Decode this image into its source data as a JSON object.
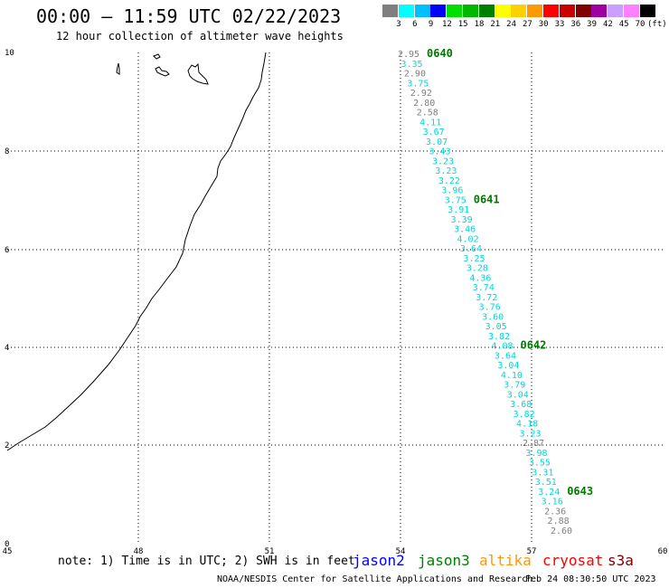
{
  "header": {
    "title": "00:00 – 11:59 UTC 02/22/2023",
    "subtitle": "12 hour collection of altimeter wave heights"
  },
  "color_scale": {
    "unit": "(ft)",
    "steps": [
      {
        "label": "3",
        "color": "#7f7f7f"
      },
      {
        "label": "6",
        "color": "#00ffff"
      },
      {
        "label": "9",
        "color": "#00bfff"
      },
      {
        "label": "12",
        "color": "#0000ff"
      },
      {
        "label": "15",
        "color": "#00e000"
      },
      {
        "label": "18",
        "color": "#00b800"
      },
      {
        "label": "21",
        "color": "#008000"
      },
      {
        "label": "24",
        "color": "#ffff00"
      },
      {
        "label": "27",
        "color": "#ffd000"
      },
      {
        "label": "30",
        "color": "#ff9900"
      },
      {
        "label": "33",
        "color": "#ff0000"
      },
      {
        "label": "36",
        "color": "#c80000"
      },
      {
        "label": "39",
        "color": "#800000"
      },
      {
        "label": "42",
        "color": "#a000a0"
      },
      {
        "label": "45",
        "color": "#c8a0ff"
      },
      {
        "label": "70",
        "color": "#ff80ff"
      },
      {
        "label": "",
        "color": "#000000"
      }
    ]
  },
  "map": {
    "lon_ticks": [
      "45",
      "48",
      "51",
      "54",
      "57",
      "60"
    ],
    "lat_ticks": [
      "0",
      "2",
      "4",
      "6",
      "8",
      "10"
    ],
    "track": [
      {
        "label": "2.95",
        "color": "#7f7f7f"
      },
      {
        "label": "3.35",
        "color": "#00d8d8"
      },
      {
        "label": "2.90",
        "color": "#7f7f7f"
      },
      {
        "label": "3.75",
        "color": "#00d8d8"
      },
      {
        "label": "2.92",
        "color": "#7f7f7f"
      },
      {
        "label": "2.80",
        "color": "#7f7f7f"
      },
      {
        "label": "2.58",
        "color": "#7f7f7f"
      },
      {
        "label": "4.11",
        "color": "#00d8d8"
      },
      {
        "label": "3.67",
        "color": "#00d8d8"
      },
      {
        "label": "3.07",
        "color": "#00d8d8"
      },
      {
        "label": "3.43",
        "color": "#00d8d8"
      },
      {
        "label": "3.23",
        "color": "#00d8d8"
      },
      {
        "label": "3.23",
        "color": "#00d8d8"
      },
      {
        "label": "3.22",
        "color": "#00d8d8"
      },
      {
        "label": "3.96",
        "color": "#00d8d8"
      },
      {
        "label": "3.75",
        "color": "#00d8d8"
      },
      {
        "label": "3.91",
        "color": "#00d8d8"
      },
      {
        "label": "3.39",
        "color": "#00d8d8"
      },
      {
        "label": "3.46",
        "color": "#00d8d8"
      },
      {
        "label": "4.02",
        "color": "#00d8d8"
      },
      {
        "label": "3.64",
        "color": "#00d8d8"
      },
      {
        "label": "3.25",
        "color": "#00d8d8"
      },
      {
        "label": "3.28",
        "color": "#00d8d8"
      },
      {
        "label": "4.36",
        "color": "#00d8d8"
      },
      {
        "label": "3.74",
        "color": "#00d8d8"
      },
      {
        "label": "3.72",
        "color": "#00d8d8"
      },
      {
        "label": "3.76",
        "color": "#00d8d8"
      },
      {
        "label": "3.60",
        "color": "#00d8d8"
      },
      {
        "label": "3.05",
        "color": "#00d8d8"
      },
      {
        "label": "3.82",
        "color": "#00d8d8"
      },
      {
        "label": "4.08",
        "color": "#00d8d8"
      },
      {
        "label": "3.64",
        "color": "#00d8d8"
      },
      {
        "label": "3.04",
        "color": "#00d8d8"
      },
      {
        "label": "4.10",
        "color": "#00d8d8"
      },
      {
        "label": "3.79",
        "color": "#00d8d8"
      },
      {
        "label": "3.04",
        "color": "#00d8d8"
      },
      {
        "label": "3.68",
        "color": "#00d8d8"
      },
      {
        "label": "3.82",
        "color": "#00d8d8"
      },
      {
        "label": "4.18",
        "color": "#00d8d8"
      },
      {
        "label": "3.23",
        "color": "#00d8d8"
      },
      {
        "label": "2.87",
        "color": "#7f7f7f"
      },
      {
        "label": "3.98",
        "color": "#00d8d8"
      },
      {
        "label": "3.55",
        "color": "#00d8d8"
      },
      {
        "label": "3.31",
        "color": "#00d8d8"
      },
      {
        "label": "3.51",
        "color": "#00d8d8"
      },
      {
        "label": "3.24",
        "color": "#00d8d8"
      },
      {
        "label": "3.16",
        "color": "#00d8d8"
      },
      {
        "label": "2.36",
        "color": "#7f7f7f"
      },
      {
        "label": "2.88",
        "color": "#7f7f7f"
      },
      {
        "label": "2.60",
        "color": "#7f7f7f"
      }
    ],
    "pass_times": [
      {
        "label": "0640",
        "after_index": 0
      },
      {
        "label": "0641",
        "after_index": 15
      },
      {
        "label": "0642",
        "after_index": 30
      },
      {
        "label": "0643",
        "after_index": 45
      }
    ]
  },
  "footer": {
    "note": "note: 1) Time is in UTC; 2) SWH is in feet",
    "satellites": [
      {
        "label": "jason2",
        "color": "#0000ff"
      },
      {
        "label": "jason3",
        "color": "#008000"
      },
      {
        "label": "altika",
        "color": "#ff9900"
      },
      {
        "label": "cryosat",
        "color": "#ff0000"
      },
      {
        "label": "s3a",
        "color": "#800000"
      }
    ],
    "credit": "NOAA/NESDIS Center for Satellite Applications and Research",
    "timestamp": "Feb 24 08:30:50 UTC 2023"
  }
}
